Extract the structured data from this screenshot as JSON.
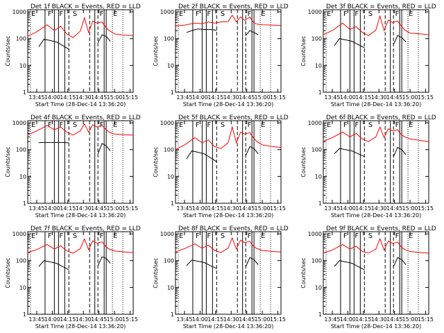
{
  "window": {
    "background": "#ffffff",
    "axis_color": "#000000",
    "events_color": "#000000",
    "lld_color": "#ff0000"
  },
  "chart_data": [
    {
      "type": "line",
      "title": "Det 1f BLACK = Events, RED = LLD",
      "xlabel": "Start Time (28-Dec-14 13:36:20)",
      "ylabel": "Counts/sec",
      "x_tick_labels": [
        "13:45",
        "14:00",
        "14:15",
        "14:30",
        "14:45",
        "15:00",
        "15:15"
      ],
      "y_tick_labels": [
        "1",
        "10",
        "100",
        "1000"
      ],
      "y_scale": "log",
      "ylim": [
        1,
        1200
      ],
      "xlim": [
        "13:36:20",
        "15:18:00"
      ],
      "mode_labels": [
        "E",
        "F",
        "F",
        "S",
        "F",
        "E"
      ],
      "series": [
        {
          "name": "LLD",
          "color": "#ff0000",
          "x": [
            "13:36",
            "13:45",
            "13:55",
            "14:02",
            "14:08",
            "14:14",
            "14:20",
            "14:27",
            "14:31",
            "14:35",
            "14:39",
            "14:43",
            "14:48",
            "14:52",
            "14:55",
            "15:00",
            "15:10",
            "15:18"
          ],
          "y": [
            120,
            180,
            330,
            200,
            290,
            150,
            110,
            190,
            600,
            170,
            450,
            380,
            420,
            250,
            200,
            150,
            135,
            130
          ]
        },
        {
          "name": "Events",
          "color": "#000000",
          "x": [
            "13:47",
            "13:52",
            "13:58",
            "14:04",
            "14:10",
            "14:14",
            "14:16"
          ],
          "y": [
            50,
            95,
            85,
            75,
            55,
            45,
            40
          ],
          "x2": [
            "14:44",
            "14:48",
            "14:52",
            "14:56"
          ],
          "y2": [
            70,
            140,
            120,
            80
          ]
        }
      ]
    },
    {
      "type": "line",
      "title": "Det 2f BLACK = Events, RED = LLD",
      "xlabel": "Start Time (28-Dec-14 13:36:20)",
      "ylabel": "Counts/sec",
      "x_tick_labels": [
        "13:45",
        "14:00",
        "14:15",
        "14:30",
        "14:45",
        "15:00",
        "15:15"
      ],
      "y_tick_labels": [
        "1",
        "10",
        "100",
        "1000"
      ],
      "y_scale": "log",
      "ylim": [
        1,
        1200
      ],
      "xlim": [
        "13:36:20",
        "15:18:00"
      ],
      "mode_labels": [
        "E",
        "F",
        "F",
        "S",
        "F",
        "E"
      ],
      "series": [
        {
          "name": "LLD",
          "color": "#ff0000",
          "x": [
            "13:36",
            "13:45",
            "13:55",
            "14:02",
            "14:08",
            "14:14",
            "14:20",
            "14:27",
            "14:31",
            "14:35",
            "14:39",
            "14:43",
            "14:48",
            "14:52",
            "14:55",
            "15:00",
            "15:10",
            "15:18"
          ],
          "y": [
            300,
            320,
            380,
            360,
            420,
            380,
            420,
            430,
            750,
            420,
            650,
            480,
            640,
            380,
            350,
            330,
            320,
            310
          ]
        },
        {
          "name": "Events",
          "color": "#000000",
          "x": [
            "13:47",
            "13:52",
            "13:58",
            "14:04",
            "14:10",
            "14:14",
            "14:16"
          ],
          "y": [
            170,
            200,
            230,
            220,
            220,
            210,
            200
          ],
          "x2": [
            "14:44",
            "14:48",
            "14:52",
            "14:56"
          ],
          "y2": [
            130,
            200,
            170,
            140
          ]
        }
      ]
    },
    {
      "type": "line",
      "title": "Det 3f BLACK = Events, RED = LLD",
      "xlabel": "Start Time (28-Dec-14 13:36:20)",
      "ylabel": "Counts/sec",
      "x_tick_labels": [
        "13:45",
        "14:00",
        "14:15",
        "14:30",
        "14:45",
        "15:00",
        "15:15"
      ],
      "y_tick_labels": [
        "1",
        "10",
        "100",
        "1000"
      ],
      "y_scale": "log",
      "ylim": [
        1,
        1200
      ],
      "xlim": [
        "13:36:20",
        "15:18:00"
      ],
      "mode_labels": [
        "E",
        "F",
        "F",
        "S",
        "F",
        "E"
      ],
      "series": [
        {
          "name": "LLD",
          "color": "#ff0000",
          "x": [
            "13:36",
            "13:45",
            "13:55",
            "14:02",
            "14:08",
            "14:14",
            "14:20",
            "14:27",
            "14:31",
            "14:35",
            "14:39",
            "14:43",
            "14:48",
            "14:52",
            "14:55",
            "15:00",
            "15:10",
            "15:18"
          ],
          "y": [
            140,
            200,
            380,
            220,
            280,
            170,
            130,
            210,
            700,
            200,
            500,
            400,
            450,
            280,
            210,
            160,
            150,
            140
          ]
        },
        {
          "name": "Events",
          "color": "#000000",
          "x": [
            "13:47",
            "13:52",
            "13:58",
            "14:04",
            "14:10",
            "14:14",
            "14:16"
          ],
          "y": [
            55,
            100,
            90,
            80,
            60,
            50,
            45
          ],
          "x2": [
            "14:44",
            "14:48",
            "14:52",
            "14:56"
          ],
          "y2": [
            60,
            130,
            110,
            75
          ]
        }
      ]
    },
    {
      "type": "line",
      "title": "Det 4f BLACK = Events, RED = LLD",
      "xlabel": "Start Time (28-Dec-14 13:36:20)",
      "ylabel": "Counts/sec",
      "x_tick_labels": [
        "13:45",
        "14:00",
        "14:15",
        "14:30",
        "14:45",
        "15:00",
        "15:15"
      ],
      "y_tick_labels": [
        "1",
        "10",
        "100",
        "1000"
      ],
      "y_scale": "log",
      "ylim": [
        1,
        1200
      ],
      "xlim": [
        "13:36:20",
        "15:18:00"
      ],
      "mode_labels": [
        "E",
        "F",
        "F",
        "S",
        "F",
        "E"
      ],
      "series": [
        {
          "name": "LLD",
          "color": "#ff0000",
          "x": [
            "13:36",
            "13:45",
            "13:55",
            "14:02",
            "14:08",
            "14:14",
            "14:20",
            "14:27",
            "14:31",
            "14:35",
            "14:39",
            "14:43",
            "14:48",
            "14:52",
            "14:55",
            "15:00",
            "15:10",
            "15:18"
          ],
          "y": [
            350,
            500,
            800,
            550,
            700,
            450,
            350,
            500,
            900,
            450,
            850,
            700,
            800,
            550,
            450,
            380,
            360,
            350
          ]
        },
        {
          "name": "Events",
          "color": "#000000",
          "x": [
            "13:47",
            "13:52",
            "13:58",
            "14:04",
            "14:10",
            "14:14",
            "14:16"
          ],
          "y": [
            180,
            185,
            185,
            185,
            185,
            180,
            180
          ],
          "x2": [
            "14:44",
            "14:48",
            "14:52",
            "14:56"
          ],
          "y2": [
            70,
            170,
            140,
            90
          ]
        }
      ]
    },
    {
      "type": "line",
      "title": "Det 5f BLACK = Events, RED = LLD",
      "xlabel": "Start Time (28-Dec-14 13:36:20)",
      "ylabel": "Counts/sec",
      "x_tick_labels": [
        "13:45",
        "14:00",
        "14:15",
        "14:30",
        "14:45",
        "15:00",
        "15:15"
      ],
      "y_tick_labels": [
        "1",
        "10",
        "100",
        "1000"
      ],
      "y_scale": "log",
      "ylim": [
        1,
        1200
      ],
      "xlim": [
        "13:36:20",
        "15:18:00"
      ],
      "mode_labels": [
        "E",
        "F",
        "F",
        "S",
        "F",
        "E"
      ],
      "series": [
        {
          "name": "LLD",
          "color": "#ff0000",
          "x": [
            "13:36",
            "13:45",
            "13:55",
            "14:02",
            "14:08",
            "14:14",
            "14:20",
            "14:27",
            "14:31",
            "14:35",
            "14:39",
            "14:43",
            "14:48",
            "14:52",
            "14:55",
            "15:00",
            "15:10",
            "15:18"
          ],
          "y": [
            100,
            150,
            280,
            180,
            230,
            130,
            110,
            180,
            700,
            180,
            450,
            380,
            430,
            260,
            200,
            150,
            130,
            120
          ]
        },
        {
          "name": "Events",
          "color": "#000000",
          "x": [
            "13:47",
            "13:52",
            "13:58",
            "14:04",
            "14:10",
            "14:14",
            "14:16"
          ],
          "y": [
            45,
            90,
            80,
            70,
            50,
            40,
            35
          ],
          "x2": [
            "14:44",
            "14:48",
            "14:52",
            "14:56"
          ],
          "y2": [
            60,
            130,
            110,
            70
          ]
        }
      ]
    },
    {
      "type": "line",
      "title": "Det 6f BLACK = Events, RED = LLD",
      "xlabel": "Start Time (28-Dec-14 13:36:20)",
      "ylabel": "Counts/sec",
      "x_tick_labels": [
        "13:45",
        "14:00",
        "14:15",
        "14:30",
        "14:45",
        "15:00",
        "15:15"
      ],
      "y_tick_labels": [
        "1",
        "10",
        "100",
        "1000"
      ],
      "y_scale": "log",
      "ylim": [
        1,
        1200
      ],
      "xlim": [
        "13:36:20",
        "15:18:00"
      ],
      "mode_labels": [
        "E",
        "F",
        "F",
        "S",
        "F",
        "E"
      ],
      "series": [
        {
          "name": "LLD",
          "color": "#ff0000",
          "x": [
            "13:36",
            "13:45",
            "13:55",
            "14:02",
            "14:08",
            "14:14",
            "14:20",
            "14:27",
            "14:31",
            "14:35",
            "14:39",
            "14:43",
            "14:48",
            "14:52",
            "14:55",
            "15:00",
            "15:10",
            "15:18"
          ],
          "y": [
            200,
            280,
            450,
            300,
            400,
            250,
            200,
            300,
            700,
            280,
            600,
            500,
            550,
            350,
            300,
            250,
            220,
            200
          ]
        },
        {
          "name": "Events",
          "color": "#000000",
          "x": [
            "13:47",
            "13:52",
            "13:58",
            "14:04",
            "14:10",
            "14:14",
            "14:16"
          ],
          "y": [
            70,
            110,
            100,
            90,
            70,
            60,
            55
          ],
          "x2": [
            "14:44",
            "14:48",
            "14:52",
            "14:56"
          ],
          "y2": [
            55,
            120,
            100,
            65
          ]
        }
      ]
    },
    {
      "type": "line",
      "title": "Det 7f BLACK = Events, RED = LLD",
      "xlabel": "Start Time (28-Dec-14 13:36:20)",
      "ylabel": "Counts/sec",
      "x_tick_labels": [
        "13:45",
        "14:00",
        "14:15",
        "14:30",
        "14:45",
        "15:00",
        "15:15"
      ],
      "y_tick_labels": [
        "1",
        "10",
        "100",
        "1000"
      ],
      "y_scale": "log",
      "ylim": [
        1,
        1200
      ],
      "xlim": [
        "13:36:20",
        "15:18:00"
      ],
      "mode_labels": [
        "E",
        "F",
        "F",
        "S",
        "F",
        "E"
      ],
      "series": [
        {
          "name": "LLD",
          "color": "#ff0000",
          "x": [
            "13:36",
            "13:45",
            "13:55",
            "14:02",
            "14:08",
            "14:14",
            "14:20",
            "14:27",
            "14:31",
            "14:35",
            "14:39",
            "14:43",
            "14:48",
            "14:52",
            "14:55",
            "15:00",
            "15:10",
            "15:18"
          ],
          "y": [
            200,
            260,
            400,
            270,
            360,
            230,
            190,
            280,
            650,
            260,
            550,
            450,
            500,
            320,
            270,
            230,
            210,
            200
          ]
        },
        {
          "name": "Events",
          "color": "#000000",
          "x": [
            "13:47",
            "13:52",
            "13:58",
            "14:04",
            "14:10",
            "14:14",
            "14:16"
          ],
          "y": [
            60,
            100,
            90,
            80,
            60,
            50,
            45
          ],
          "x2": [
            "14:44",
            "14:48",
            "14:52",
            "14:56"
          ],
          "y2": [
            65,
            140,
            120,
            80
          ]
        }
      ]
    },
    {
      "type": "line",
      "title": "Det 8f BLACK = Events, RED = LLD",
      "xlabel": "Start Time (28-Dec-14 13:36:20)",
      "ylabel": "Counts/sec",
      "x_tick_labels": [
        "13:45",
        "14:00",
        "14:15",
        "14:30",
        "14:45",
        "15:00",
        "15:15"
      ],
      "y_tick_labels": [
        "1",
        "10",
        "100",
        "1000"
      ],
      "y_scale": "log",
      "ylim": [
        1,
        1200
      ],
      "xlim": [
        "13:36:20",
        "15:18:00"
      ],
      "mode_labels": [
        "E",
        "F",
        "F",
        "S",
        "F",
        "E"
      ],
      "series": [
        {
          "name": "LLD",
          "color": "#ff0000",
          "x": [
            "13:36",
            "13:45",
            "13:55",
            "14:02",
            "14:08",
            "14:14",
            "14:20",
            "14:27",
            "14:31",
            "14:35",
            "14:39",
            "14:43",
            "14:48",
            "14:52",
            "14:55",
            "15:00",
            "15:10",
            "15:18"
          ],
          "y": [
            210,
            280,
            420,
            290,
            380,
            240,
            200,
            290,
            700,
            270,
            580,
            470,
            520,
            330,
            280,
            240,
            220,
            210
          ]
        },
        {
          "name": "Events",
          "color": "#000000",
          "x": [
            "13:47",
            "13:52",
            "13:58",
            "14:04",
            "14:10",
            "14:14",
            "14:16"
          ],
          "y": [
            65,
            105,
            95,
            85,
            65,
            55,
            50
          ],
          "x2": [
            "14:44",
            "14:48",
            "14:52",
            "14:56"
          ],
          "y2": [
            60,
            130,
            110,
            70
          ]
        }
      ]
    },
    {
      "type": "line",
      "title": "Det 9f BLACK = Events, RED = LLD",
      "xlabel": "Start Time (28-Dec-14 13:36:20)",
      "ylabel": "Counts/sec",
      "x_tick_labels": [
        "13:45",
        "14:00",
        "14:15",
        "14:30",
        "14:45",
        "15:00",
        "15:15"
      ],
      "y_tick_labels": [
        "1",
        "10",
        "100",
        "1000"
      ],
      "y_scale": "log",
      "ylim": [
        1,
        1200
      ],
      "xlim": [
        "13:36:20",
        "15:18:00"
      ],
      "mode_labels": [
        "E",
        "F",
        "F",
        "S",
        "F",
        "E"
      ],
      "series": [
        {
          "name": "LLD",
          "color": "#ff0000",
          "x": [
            "13:36",
            "13:45",
            "13:55",
            "14:02",
            "14:08",
            "14:14",
            "14:20",
            "14:27",
            "14:31",
            "14:35",
            "14:39",
            "14:43",
            "14:48",
            "14:52",
            "14:55",
            "15:00",
            "15:10",
            "15:18"
          ],
          "y": [
            190,
            250,
            400,
            270,
            350,
            220,
            190,
            270,
            650,
            250,
            540,
            440,
            490,
            310,
            260,
            220,
            200,
            190
          ]
        },
        {
          "name": "Events",
          "color": "#000000",
          "x": [
            "13:47",
            "13:52",
            "13:58",
            "14:04",
            "14:10",
            "14:14",
            "14:16"
          ],
          "y": [
            60,
            100,
            90,
            80,
            60,
            50,
            45
          ],
          "x2": [
            "14:44",
            "14:48",
            "14:52",
            "14:56"
          ],
          "y2": [
            60,
            130,
            110,
            70
          ]
        }
      ]
    }
  ]
}
